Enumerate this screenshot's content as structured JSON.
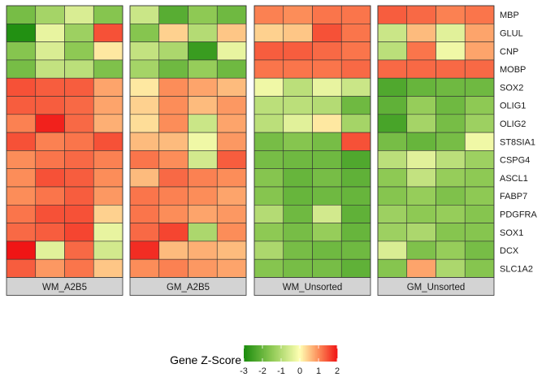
{
  "chart_data": {
    "type": "heatmap",
    "title": "",
    "xlabel": "",
    "ylabel": "",
    "genes": [
      "MBP",
      "GLUL",
      "CNP",
      "MOBP",
      "SOX2",
      "OLIG1",
      "OLIG2",
      "ST8SIA1",
      "CSPG4",
      "ASCL1",
      "FABP7",
      "PDGFRA",
      "SOX1",
      "DCX",
      "SLC1A2"
    ],
    "panels": [
      {
        "name": "WM_A2B5",
        "values": [
          [
            -1.8,
            -1.2,
            -0.5,
            -1.6
          ],
          [
            -2.9,
            -0.3,
            -1.3,
            1.5
          ],
          [
            -1.6,
            -0.5,
            -1.5,
            0.2
          ],
          [
            -1.8,
            -0.8,
            -0.9,
            -1.7
          ],
          [
            1.5,
            1.4,
            1.4,
            0.8
          ],
          [
            1.4,
            1.4,
            1.3,
            0.8
          ],
          [
            1.1,
            1.9,
            1.3,
            0.7
          ],
          [
            1.5,
            1.1,
            1.2,
            1.5
          ],
          [
            1.0,
            1.2,
            1.3,
            1.1
          ],
          [
            1.0,
            1.5,
            1.4,
            1.0
          ],
          [
            1.0,
            1.2,
            1.4,
            0.9
          ],
          [
            1.2,
            1.5,
            1.5,
            0.4
          ],
          [
            1.3,
            1.4,
            1.6,
            -0.3
          ],
          [
            2.0,
            -0.4,
            1.3,
            -0.6
          ],
          [
            1.4,
            0.9,
            1.2,
            0.5
          ]
        ]
      },
      {
        "name": "GM_A2B5",
        "values": [
          [
            -0.7,
            -2.2,
            -1.5,
            -1.9
          ],
          [
            -1.6,
            0.4,
            -1.0,
            0.5
          ],
          [
            -0.8,
            -1.1,
            -2.6,
            -0.3
          ],
          [
            -1.2,
            -1.9,
            -1.4,
            -1.9
          ],
          [
            0.2,
            1.0,
            0.8,
            0.6
          ],
          [
            0.4,
            1.0,
            0.6,
            0.9
          ],
          [
            0.3,
            1.0,
            -0.7,
            0.8
          ],
          [
            0.6,
            0.6,
            -0.2,
            0.9
          ],
          [
            1.2,
            1.0,
            -0.6,
            1.4
          ],
          [
            0.6,
            1.3,
            1.1,
            1.0
          ],
          [
            1.2,
            1.1,
            1.0,
            0.8
          ],
          [
            1.2,
            1.0,
            0.8,
            0.9
          ],
          [
            1.3,
            1.6,
            -1.1,
            1.0
          ],
          [
            1.8,
            0.6,
            0.7,
            0.6
          ],
          [
            1.0,
            1.1,
            0.9,
            0.8
          ]
        ]
      },
      {
        "name": "WM_Unsorted",
        "values": [
          [
            1.1,
            1.0,
            1.2,
            1.2
          ],
          [
            0.4,
            0.5,
            1.5,
            1.2
          ],
          [
            1.4,
            1.4,
            1.3,
            1.2
          ],
          [
            1.2,
            1.2,
            1.2,
            1.3
          ],
          [
            -0.2,
            -0.9,
            -0.3,
            -0.7
          ],
          [
            -0.9,
            -0.9,
            -1.0,
            -1.9
          ],
          [
            -0.9,
            -0.4,
            0.2,
            -1.2
          ],
          [
            -1.8,
            -1.6,
            -1.8,
            1.5
          ],
          [
            -1.8,
            -1.9,
            -1.9,
            -2.3
          ],
          [
            -1.6,
            -2.0,
            -1.8,
            -2.1
          ],
          [
            -1.6,
            -2.0,
            -1.9,
            -2.0
          ],
          [
            -1.0,
            -1.9,
            -0.6,
            -2.1
          ],
          [
            -1.5,
            -1.8,
            -1.4,
            -2.0
          ],
          [
            -1.1,
            -1.8,
            -1.9,
            -1.9
          ],
          [
            -1.6,
            -1.8,
            -1.8,
            -2.1
          ]
        ]
      },
      {
        "name": "GM_Unsorted",
        "values": [
          [
            1.4,
            1.3,
            1.1,
            1.2
          ],
          [
            -0.7,
            0.6,
            -0.4,
            0.8
          ],
          [
            -0.9,
            1.2,
            -0.2,
            0.8
          ],
          [
            1.3,
            1.3,
            1.3,
            1.3
          ],
          [
            -2.3,
            -2.0,
            -1.9,
            -1.9
          ],
          [
            -2.1,
            -1.4,
            -1.9,
            -1.5
          ],
          [
            -2.4,
            -1.2,
            -1.8,
            -1.3
          ],
          [
            -1.8,
            -2.0,
            -1.8,
            -0.2
          ],
          [
            -0.9,
            -0.4,
            -0.9,
            -1.3
          ],
          [
            -1.5,
            -0.8,
            -1.4,
            -1.5
          ],
          [
            -1.6,
            -1.4,
            -1.7,
            -1.5
          ],
          [
            -1.3,
            -1.5,
            -1.4,
            -1.6
          ],
          [
            -1.3,
            -1.1,
            -1.6,
            -1.6
          ],
          [
            -0.5,
            -1.7,
            -1.4,
            -1.8
          ],
          [
            -1.6,
            0.8,
            -1.1,
            -1.6
          ]
        ]
      }
    ],
    "color_scale": {
      "min": -3,
      "max": 2,
      "stops": [
        {
          "value": -3,
          "color": "#1a8c0d"
        },
        {
          "value": -1.5,
          "color": "#8ec954"
        },
        {
          "value": 0,
          "color": "#ffffb3"
        },
        {
          "value": 1,
          "color": "#fc8d59"
        },
        {
          "value": 2,
          "color": "#f01515"
        }
      ]
    },
    "legend": {
      "title": "Gene Z-Score",
      "ticks": [
        -3,
        -2,
        -1,
        0,
        1,
        2
      ],
      "placement": "bottom"
    },
    "colors": {
      "strip_fill": "#d3d3d3",
      "cell_border": "#333333"
    }
  }
}
